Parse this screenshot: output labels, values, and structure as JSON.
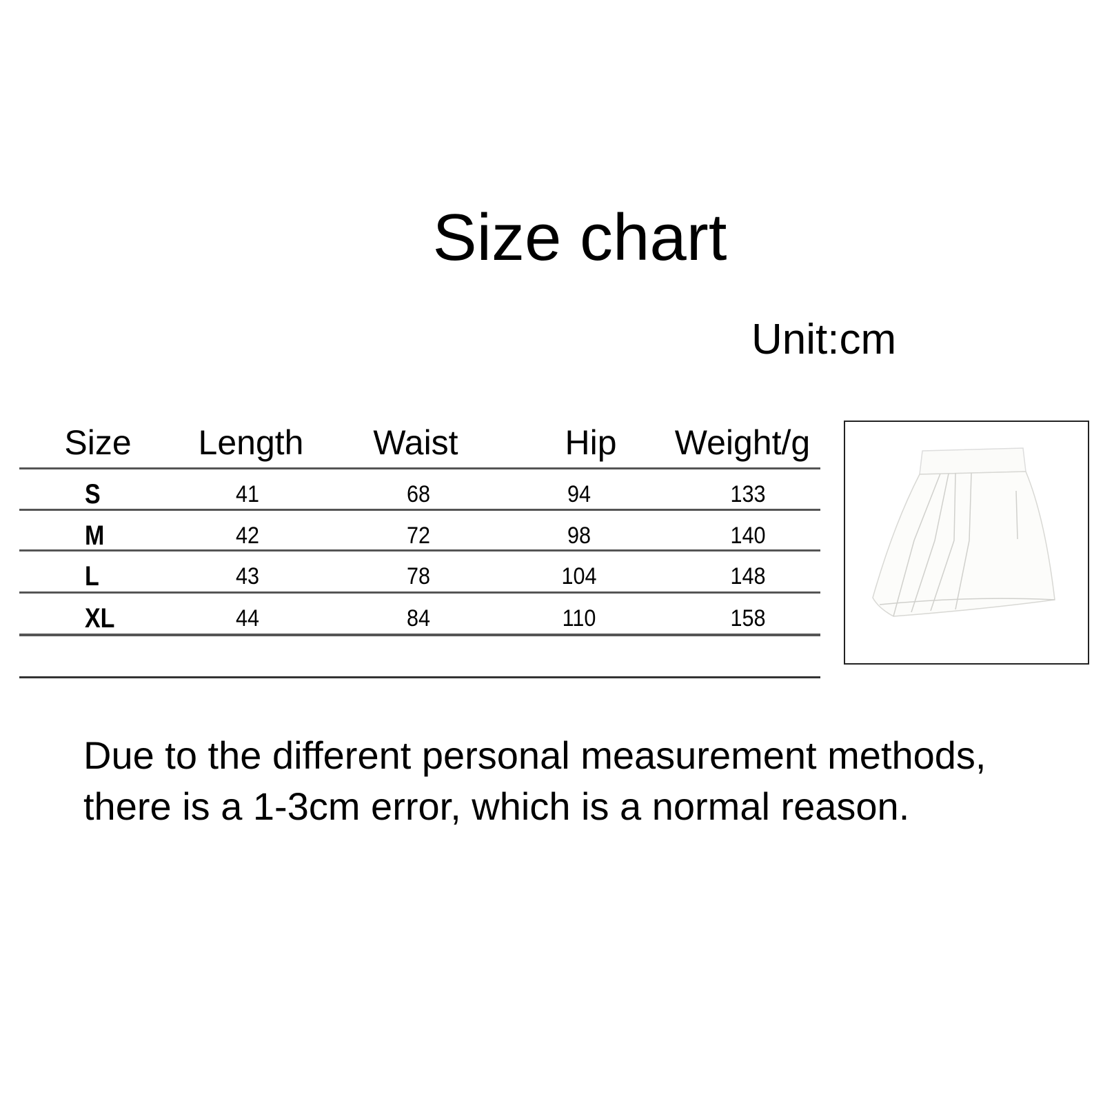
{
  "title": "Size chart",
  "unit": "Unit:cm",
  "table": {
    "headers": [
      "Size",
      "Length",
      "Waist",
      "Hip",
      "Weight/g"
    ],
    "rows": [
      [
        "S",
        "41",
        "68",
        "94",
        "133"
      ],
      [
        "M",
        "42",
        "72",
        "98",
        "140"
      ],
      [
        "L",
        "43",
        "78",
        "104",
        "148"
      ],
      [
        "XL",
        "44",
        "84",
        "110",
        "158"
      ]
    ]
  },
  "product_image": {
    "subject": "white pleated mini skirt"
  },
  "note": {
    "line1": "Due to the different personal measurement methods,",
    "line2": "there is a 1-3cm error, which is a normal reason."
  }
}
